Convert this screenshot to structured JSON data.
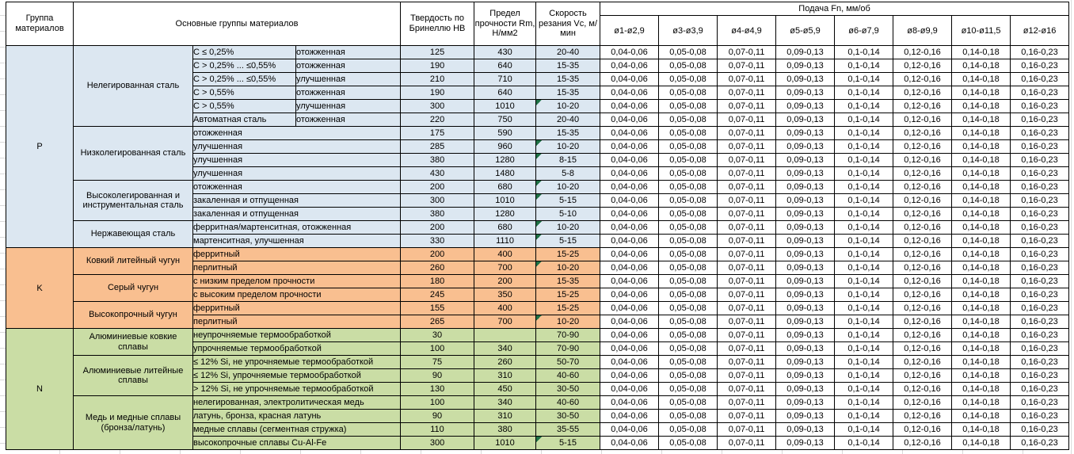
{
  "header": {
    "col_group": "Группа материалов",
    "col_main_groups": "Основные группы материалов",
    "col_hardness": "Твердость по Бринеллю HB",
    "col_strength": "Предел прочности Rm, Н/мм2",
    "col_speed": "Скорость резания Vc, м/мин",
    "feed_title": "Подача Fn, мм/об",
    "feed_cols": [
      "ø1-ø2,9",
      "ø3-ø3,9",
      "ø4-ø4,9",
      "ø5-ø5,9",
      "ø6-ø7,9",
      "ø8-ø9,9",
      "ø10-ø11,5",
      "ø12-ø16"
    ]
  },
  "feed_values": [
    "0,04-0,06",
    "0,05-0,08",
    "0,07-0,11",
    "0,09-0,13",
    "0,1-0,14",
    "0,12-0,16",
    "0,14-0,18",
    "0,16-0,23"
  ],
  "colors": {
    "group_P": "#dce7f1",
    "group_K": "#f9bf90",
    "group_N": "#cadda5",
    "feed_bg": "#ffffff",
    "indicator": "#1e7145",
    "border": "#000000",
    "gridline": "#d9d9d9"
  },
  "groups": [
    {
      "letter": "P",
      "color": "group_P",
      "families": [
        {
          "name": "Нелегированная сталь",
          "rows": [
            {
              "char1": "C ≤ 0,25%",
              "char2": "отожженная",
              "hb": "125",
              "rm": "430",
              "vc": "20-40",
              "indicator": false
            },
            {
              "char1": "C > 0,25% ... ≤0,55%",
              "char2": "отожженная",
              "hb": "190",
              "rm": "640",
              "vc": "15-35",
              "indicator": false
            },
            {
              "char1": "C > 0,25% ... ≤0,55%",
              "char2": "улучшенная",
              "hb": "210",
              "rm": "710",
              "vc": "15-35",
              "indicator": false
            },
            {
              "char1": "C > 0,55%",
              "char2": "отожженная",
              "hb": "190",
              "rm": "640",
              "vc": "15-35",
              "indicator": false
            },
            {
              "char1": "C > 0,55%",
              "char2": "улучшенная",
              "hb": "300",
              "rm": "1010",
              "vc": "10-20",
              "indicator": true
            },
            {
              "char1": "Автоматная сталь",
              "char2": "отожженная",
              "hb": "220",
              "rm": "750",
              "vc": "20-40",
              "indicator": false
            }
          ]
        },
        {
          "name": "Низколегированная сталь",
          "rows": [
            {
              "char1": "отожженная",
              "hb": "175",
              "rm": "590",
              "vc": "15-35",
              "indicator": false
            },
            {
              "char1": "улучшенная",
              "hb": "285",
              "rm": "960",
              "vc": "10-20",
              "indicator": true
            },
            {
              "char1": "улучшенная",
              "hb": "380",
              "rm": "1280",
              "vc": "8-15",
              "indicator": true
            },
            {
              "char1": "улучшенная",
              "hb": "430",
              "rm": "1480",
              "vc": "5-8",
              "indicator": false
            }
          ]
        },
        {
          "name": "Высоколегированная и инструментальная сталь",
          "rows": [
            {
              "char1": "отожженная",
              "hb": "200",
              "rm": "680",
              "vc": "10-20",
              "indicator": true
            },
            {
              "char1": "закаленная и отпущенная",
              "hb": "300",
              "rm": "1010",
              "vc": "5-15",
              "indicator": true
            },
            {
              "char1": "закаленная и отпущенная",
              "hb": "380",
              "rm": "1280",
              "vc": "5-10",
              "indicator": false
            }
          ]
        },
        {
          "name": "Нержавеющая сталь",
          "rows": [
            {
              "char1": "ферритная/мартенситная, отожженная",
              "hb": "200",
              "rm": "680",
              "vc": "10-20",
              "indicator": true
            },
            {
              "char1": "мартенситная, улучшенная",
              "hb": "330",
              "rm": "1110",
              "vc": "5-15",
              "indicator": true
            }
          ]
        }
      ]
    },
    {
      "letter": "K",
      "color": "group_K",
      "families": [
        {
          "name": "Ковкий литейный чугун",
          "rows": [
            {
              "char1": "ферритный",
              "hb": "200",
              "rm": "400",
              "vc": "15-25",
              "indicator": false
            },
            {
              "char1": "перлитный",
              "hb": "260",
              "rm": "700",
              "vc": "10-20",
              "indicator": true
            }
          ]
        },
        {
          "name": "Серый чугун",
          "rows": [
            {
              "char1": "с низким пределом прочности",
              "hb": "180",
              "rm": "200",
              "vc": "15-35",
              "indicator": false
            },
            {
              "char1": "с высоким пределом прочности",
              "hb": "245",
              "rm": "350",
              "vc": "15-25",
              "indicator": false
            }
          ]
        },
        {
          "name": "Высокопрочный чугун",
          "rows": [
            {
              "char1": "ферритный",
              "hb": "155",
              "rm": "400",
              "vc": "15-25",
              "indicator": false
            },
            {
              "char1": "перлитный",
              "hb": "265",
              "rm": "700",
              "vc": "10-20",
              "indicator": true
            }
          ]
        }
      ]
    },
    {
      "letter": "N",
      "color": "group_N",
      "families": [
        {
          "name": "Алюминиевые ковкие сплавы",
          "rows": [
            {
              "char1": "неупрочняемые термообработкой",
              "hb": "30",
              "rm": "",
              "vc": "70-90",
              "indicator": false
            },
            {
              "char1": "упрочняемые термообработкой",
              "hb": "100",
              "rm": "340",
              "vc": "70-90",
              "indicator": false
            }
          ]
        },
        {
          "name": "Алюминиевые литейные сплавы",
          "rows": [
            {
              "char1": "≤ 12% Si, не упрочняемые термообработкой",
              "hb": "75",
              "rm": "260",
              "vc": "50-70",
              "indicator": false
            },
            {
              "char1": "≤ 12% Si, упрочняемые термообработкой",
              "hb": "90",
              "rm": "310",
              "vc": "40-60",
              "indicator": false
            },
            {
              "char1": "> 12% Si, не упрочняемые термообработкой",
              "hb": "130",
              "rm": "450",
              "vc": "30-50",
              "indicator": false
            }
          ]
        },
        {
          "name": "Медь и медные сплавы (бронза/латунь)",
          "rows": [
            {
              "char1": "нелегированная, электролитическая медь",
              "hb": "100",
              "rm": "340",
              "vc": "40-60",
              "indicator": false
            },
            {
              "char1": "латунь, бронза, красная латунь",
              "hb": "90",
              "rm": "310",
              "vc": "30-50",
              "indicator": false
            },
            {
              "char1": "медные сплавы (сегментная стружка)",
              "hb": "110",
              "rm": "380",
              "vc": "35-55",
              "indicator": false
            },
            {
              "char1": "высокопрочные сплавы Cu-Al-Fe",
              "hb": "300",
              "rm": "1010",
              "vc": "5-15",
              "indicator": true
            }
          ]
        }
      ]
    }
  ]
}
